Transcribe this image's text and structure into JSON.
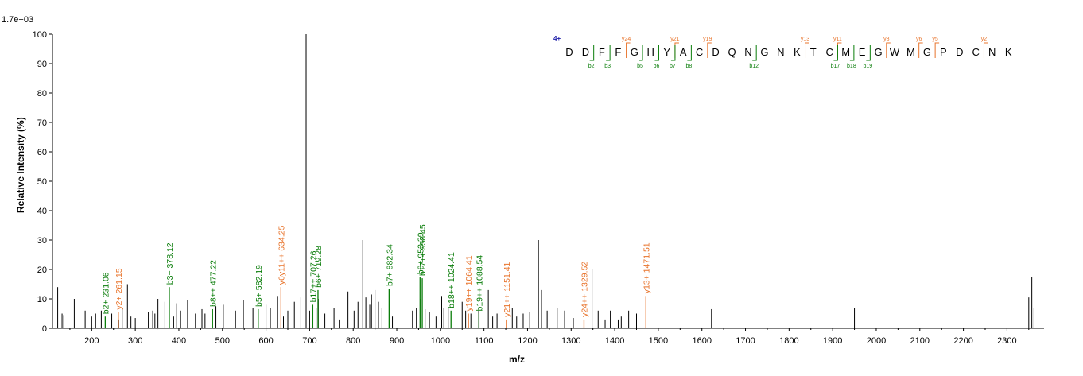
{
  "chart_data": {
    "type": "bar",
    "subtype": "mass-spectrum",
    "intensity_scale": "1.7e+03",
    "xlabel": "m/z",
    "ylabel": "Relative   Intensity (%)",
    "xlim": [
      110,
      2385
    ],
    "ylim": [
      0,
      100
    ],
    "xticks": [
      "200",
      "300",
      "400",
      "500",
      "600",
      "700",
      "800",
      "900",
      "1000",
      "1100",
      "1200",
      "1300",
      "1400",
      "1500",
      "1600",
      "1700",
      "1800",
      "1900",
      "2000",
      "2100",
      "2200",
      "2300"
    ],
    "yticks": [
      "0",
      "10",
      "20",
      "30",
      "40",
      "50",
      "60",
      "70",
      "80",
      "90",
      "100"
    ],
    "grid": false,
    "colors": {
      "b": "#0a7d0a",
      "y": "#e8742c",
      "unassigned": "#000000",
      "charge": "#1a1aa8"
    },
    "unassigned_peaks": [
      [
        122,
        14
      ],
      [
        132,
        5
      ],
      [
        136,
        4.5
      ],
      [
        160,
        10
      ],
      [
        185,
        6
      ],
      [
        200,
        4
      ],
      [
        209,
        5
      ],
      [
        222,
        6
      ],
      [
        246,
        5
      ],
      [
        262,
        3
      ],
      [
        270,
        7
      ],
      [
        282,
        15
      ],
      [
        290,
        4
      ],
      [
        300,
        3.5
      ],
      [
        330,
        5.5
      ],
      [
        340,
        6
      ],
      [
        345,
        5
      ],
      [
        352,
        10
      ],
      [
        368,
        9
      ],
      [
        388,
        4
      ],
      [
        395,
        8.5
      ],
      [
        404,
        6
      ],
      [
        420,
        9.5
      ],
      [
        438,
        5
      ],
      [
        453,
        6.5
      ],
      [
        460,
        5
      ],
      [
        485,
        7.5
      ],
      [
        502,
        8
      ],
      [
        530,
        6
      ],
      [
        548,
        9.5
      ],
      [
        570,
        7
      ],
      [
        600,
        8
      ],
      [
        610,
        7
      ],
      [
        626,
        11
      ],
      [
        640,
        4
      ],
      [
        650,
        6
      ],
      [
        665,
        9
      ],
      [
        680,
        10.5
      ],
      [
        692,
        100
      ],
      [
        700,
        6
      ],
      [
        715,
        7
      ],
      [
        720,
        10
      ],
      [
        735,
        5
      ],
      [
        756,
        7
      ],
      [
        768,
        3
      ],
      [
        788,
        12.5
      ],
      [
        802,
        6
      ],
      [
        811,
        9
      ],
      [
        822,
        30
      ],
      [
        829,
        10.5
      ],
      [
        838,
        8
      ],
      [
        842,
        11.5
      ],
      [
        850,
        13
      ],
      [
        858,
        9
      ],
      [
        866,
        7
      ],
      [
        890,
        4
      ],
      [
        936,
        6
      ],
      [
        945,
        7
      ],
      [
        955,
        10
      ],
      [
        965,
        6.5
      ],
      [
        975,
        5.5
      ],
      [
        990,
        4
      ],
      [
        1003,
        11
      ],
      [
        1008,
        7
      ],
      [
        1018,
        7
      ],
      [
        1050,
        9
      ],
      [
        1058,
        6
      ],
      [
        1070,
        5
      ],
      [
        1088,
        6
      ],
      [
        1110,
        13
      ],
      [
        1120,
        4
      ],
      [
        1130,
        5
      ],
      [
        1165,
        7
      ],
      [
        1175,
        4
      ],
      [
        1190,
        5
      ],
      [
        1205,
        5.5
      ],
      [
        1225,
        30
      ],
      [
        1232,
        13
      ],
      [
        1245,
        6
      ],
      [
        1268,
        7
      ],
      [
        1285,
        6
      ],
      [
        1305,
        3.5
      ],
      [
        1348,
        20
      ],
      [
        1362,
        6
      ],
      [
        1378,
        3
      ],
      [
        1390,
        6
      ],
      [
        1408,
        3
      ],
      [
        1415,
        4
      ],
      [
        1432,
        6
      ],
      [
        1450,
        5
      ],
      [
        1622,
        6.5
      ],
      [
        1950,
        7
      ],
      [
        2350,
        10.5
      ],
      [
        2357,
        17.5
      ],
      [
        2362,
        7
      ]
    ],
    "annotated_peaks": [
      {
        "mz": 231.06,
        "rel": 4,
        "label": "b2+ 231.06",
        "ion": "b"
      },
      {
        "mz": 261.15,
        "rel": 5.5,
        "label": "y2+ 261.15",
        "ion": "y"
      },
      {
        "mz": 378.12,
        "rel": 14,
        "label": "b3+ 378.12",
        "ion": "b"
      },
      {
        "mz": 477.22,
        "rel": 6.5,
        "label": "b8++ 477.22",
        "ion": "b"
      },
      {
        "mz": 582.19,
        "rel": 6.5,
        "label": "b5+ 582.19",
        "ion": "b"
      },
      {
        "mz": 634.25,
        "rel": 14,
        "label": "y6y11++ 634.25",
        "ion": "y"
      },
      {
        "mz": 707.26,
        "rel": 8,
        "label": "b17++ 707.26",
        "ion": "b"
      },
      {
        "mz": 719.28,
        "rel": 13,
        "label": "b6+ 719.28",
        "ion": "b"
      },
      {
        "mz": 882.34,
        "rel": 13.5,
        "label": "b7+ 882.34",
        "ion": "b"
      },
      {
        "mz": 953.39,
        "rel": 17.5,
        "label": "b8+ 953.39",
        "ion": "b"
      },
      {
        "mz": 958.45,
        "rel": 17,
        "label": "b17++ 958.45",
        "ion": "b"
      },
      {
        "mz": 1024.41,
        "rel": 6,
        "label": "b18++ 1024.41",
        "ion": "b"
      },
      {
        "mz": 1064.41,
        "rel": 5,
        "label": "y19++ 1064.41",
        "ion": "y"
      },
      {
        "mz": 1088.54,
        "rel": 5,
        "label": "b19++ 1088.54",
        "ion": "b"
      },
      {
        "mz": 1151.41,
        "rel": 3,
        "label": "y21++ 1151.41",
        "ion": "y"
      },
      {
        "mz": 1329.52,
        "rel": 3,
        "label": "y24++ 1329.52",
        "ion": "y"
      },
      {
        "mz": 1471.51,
        "rel": 11,
        "label": "y13+ 1471.51",
        "ion": "y"
      }
    ],
    "sequence": {
      "charge_label": "4+",
      "residues": [
        "D",
        "D",
        "F",
        "F",
        "G",
        "H",
        "Y",
        "A",
        "C",
        "D",
        "Q",
        "N",
        "G",
        "N",
        "K",
        "T",
        "C",
        "M",
        "E",
        "G",
        "W",
        "M",
        "G",
        "P",
        "D",
        "C",
        "N",
        "K"
      ],
      "y_ions": [
        {
          "label": "y24",
          "after": 3
        },
        {
          "label": "y21",
          "after": 6
        },
        {
          "label": "y19",
          "after": 8
        },
        {
          "label": "y13",
          "after": 14
        },
        {
          "label": "y11",
          "after": 16
        },
        {
          "label": "y8",
          "after": 19
        },
        {
          "label": "y6",
          "after": 21
        },
        {
          "label": "y5",
          "after": 22
        },
        {
          "label": "y2",
          "after": 25
        }
      ],
      "b_ions": [
        {
          "label": "b2",
          "after": 1
        },
        {
          "label": "b3",
          "after": 2
        },
        {
          "label": "b5",
          "after": 4
        },
        {
          "label": "b6",
          "after": 5
        },
        {
          "label": "b7",
          "after": 6
        },
        {
          "label": "b8",
          "after": 7
        },
        {
          "label": "b12",
          "after": 11
        },
        {
          "label": "b17",
          "after": 16
        },
        {
          "label": "b18",
          "after": 17
        },
        {
          "label": "b19",
          "after": 18
        }
      ]
    }
  }
}
